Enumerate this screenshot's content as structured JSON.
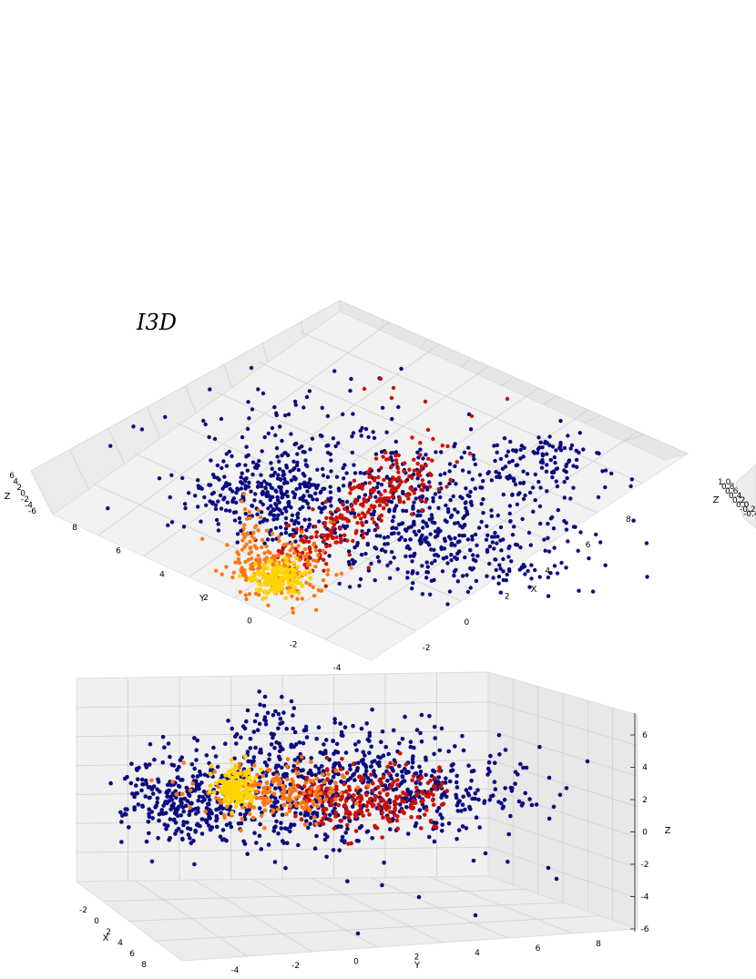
{
  "title": "I3D",
  "colors": {
    "navy": "#0b0b80",
    "red": "#cc1100",
    "orange": "#ff7710",
    "yellow": "#ffd400",
    "pane": "#f2f2f2",
    "grid": "#d0d0d0"
  },
  "chart_data": [
    {
      "type": "scatter",
      "projection": "3d",
      "view": "top-down",
      "title": "I3D",
      "xlabel": "X",
      "ylabel": "Y",
      "zlabel": "Z",
      "xlim": [
        -3,
        9
      ],
      "ylim": [
        -5,
        9
      ],
      "zlim": [
        -6,
        7
      ],
      "x_ticks": [
        "-2",
        "0",
        "2",
        "4",
        "6",
        "8"
      ],
      "y_ticks": [
        "-4",
        "-2",
        "0",
        "2",
        "4",
        "6",
        "8"
      ],
      "z_ticks": [
        "-6",
        "-4",
        "-2",
        "0",
        "2",
        "4",
        "6"
      ],
      "grid": true,
      "series": [
        {
          "color": "navy",
          "count": 1300
        },
        {
          "color": "red",
          "count": 380
        },
        {
          "color": "orange",
          "count": 220
        },
        {
          "color": "yellow",
          "count": 160
        }
      ]
    },
    {
      "type": "scatter",
      "projection": "3d",
      "view": "side",
      "xlabel": "X",
      "ylabel": "Y",
      "zlabel": "Z",
      "x_ticks": [
        "-2",
        "0",
        "2",
        "4",
        "6",
        "8"
      ],
      "y_ticks": [
        "-4",
        "-2",
        "0",
        "2",
        "4",
        "6",
        "8"
      ],
      "z_ticks": [
        "-6",
        "-4",
        "-2",
        "0",
        "2",
        "4",
        "6"
      ],
      "grid": true
    },
    {
      "type": "scatter",
      "projection": "3d",
      "view": "top-down",
      "partially_visible": true,
      "zlabel": "Z",
      "z_ticks": [
        "1.0",
        "0.8",
        "0.6",
        "0.4",
        "0.2",
        "0.0",
        "-0.2",
        "-0.4"
      ]
    }
  ]
}
